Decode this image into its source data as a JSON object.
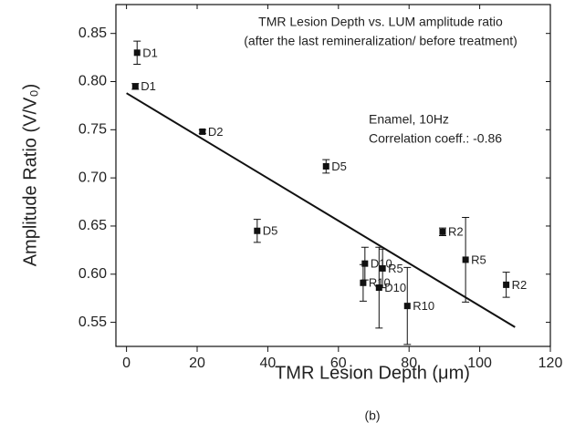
{
  "chart_data": {
    "type": "scatter",
    "title": "TMR Lesion Depth vs. LUM amplitude ratio",
    "subtitle": "(after the last remineralization/ before treatment)",
    "annotations": [
      "Enamel, 10Hz",
      "Correlation coeff.: -0.86"
    ],
    "x_label": "TMR Lesion Depth (μm)",
    "y_label": "Amplitude Ratio (V/V₀)",
    "caption": "(b)",
    "xlim": [
      -3,
      120
    ],
    "xticks": [
      0,
      20,
      40,
      60,
      80,
      100,
      120
    ],
    "ylim": [
      0.525,
      0.88
    ],
    "yticks": [
      0.55,
      {
        "value": 0.6,
        "label": "0.60"
      },
      0.65,
      {
        "value": 0.7,
        "label": "0.70"
      },
      0.75,
      {
        "value": 0.8,
        "label": "0.80"
      },
      0.85
    ],
    "color": "#111111",
    "series": [
      {
        "x": [
          3,
          2.5,
          21.5,
          56.5,
          37,
          89.5,
          67.5,
          72.5,
          96,
          67,
          71.5,
          107.5,
          79.5
        ],
        "values": [
          0.83,
          0.795,
          0.748,
          0.712,
          0.645,
          0.644,
          0.611,
          0.606,
          0.615,
          0.591,
          0.586,
          0.589,
          0.567
        ],
        "errors": [
          0.012,
          0.003,
          0.002,
          0.007,
          0.012,
          0.004,
          0.017,
          0.02,
          0.044,
          0.019,
          0.042,
          0.013,
          0.04
        ],
        "labels": [
          "D1",
          "D1",
          "D2",
          "D5",
          "D5",
          "R2",
          "D10",
          "R5",
          "R5",
          "R10",
          "D10",
          "R2",
          "R10"
        ]
      }
    ],
    "fit_line": {
      "x": [
        0,
        110
      ],
      "values": [
        0.788,
        0.545
      ]
    }
  }
}
